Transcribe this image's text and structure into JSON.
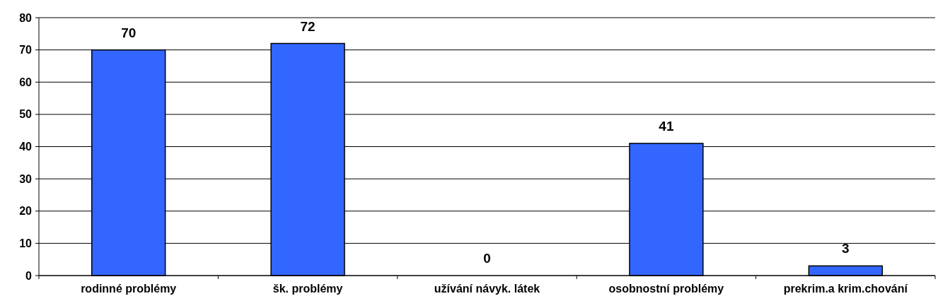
{
  "chart_data": {
    "type": "bar",
    "categories": [
      "rodinné problémy",
      "šk. problémy",
      "užívání návyk. látek",
      "osobnostní problémy",
      "prekrim.a krim.chování"
    ],
    "values": [
      70,
      72,
      0,
      41,
      3
    ],
    "color": "#3366ff",
    "ylim": [
      0,
      80
    ],
    "yticks": [
      0,
      10,
      20,
      30,
      40,
      50,
      60,
      70,
      80
    ],
    "grid": "y",
    "data_labels": true
  }
}
